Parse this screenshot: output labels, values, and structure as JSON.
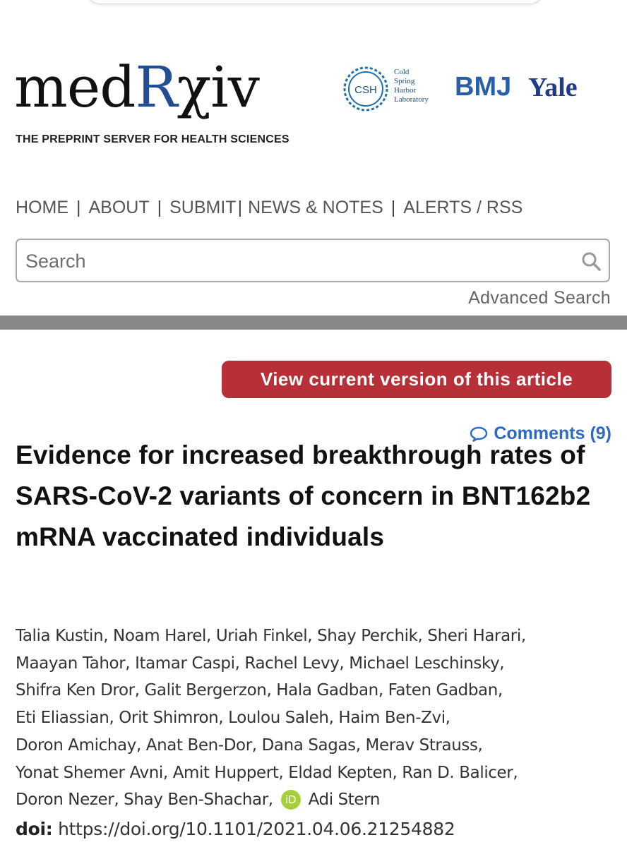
{
  "brand": {
    "logo_prefix": "med",
    "logo_r": "R",
    "logo_suffix": "χiv",
    "tagline": "THE PREPRINT SERVER FOR HEALTH SCIENCES",
    "partners": {
      "csh_initials": "CSH",
      "csh_name_lines": [
        "Cold",
        "Spring",
        "Harbor",
        "Laboratory"
      ],
      "bmj": "BMJ",
      "yale": "Yale"
    }
  },
  "nav": {
    "items": [
      "HOME",
      "ABOUT",
      "SUBMIT",
      "NEWS & NOTES",
      "ALERTS / RSS"
    ],
    "separator": "|"
  },
  "search": {
    "placeholder": "Search",
    "value": "",
    "advanced_label": "Advanced Search"
  },
  "article": {
    "view_current_label": "View current version of this article",
    "comments_label": "Comments (9)",
    "title": "Evidence for increased breakthrough rates of SARS-CoV-2 variants of concern in BNT162b2 mRNA vaccinated individuals",
    "authors_lines": [
      "Talia Kustin, Noam Harel, Uriah Finkel, Shay Perchik, Sheri Harari,",
      "Maayan Tahor, Itamar Caspi, Rachel Levy, Michael Leschinsky,",
      "Shifra Ken Dror, Galit Bergerzon, Hala Gadban, Faten Gadban,",
      "Eti Eliassian, Orit Shimron, Loulou Saleh, Haim Ben-Zvi,",
      "Doron Amichay, Anat Ben-Dor, Dana Sagas, Merav Strauss,",
      "Yonat Shemer Avni, Amit Huppert, Eldad Kepten, Ran D. Balicer,"
    ],
    "authors_last_line_prefix": "Doron Nezer, Shay Ben-Shachar,",
    "authors_last_author": "Adi Stern",
    "orcid_badge": "iD",
    "doi_label": "doi:",
    "doi_url": "https://doi.org/10.1101/2021.04.06.21254882"
  },
  "colors": {
    "brand_blue": "#254d94",
    "view_button_red": "#b72f37",
    "link_blue": "#2d6bc0",
    "orcid_green": "#a6ce39"
  }
}
